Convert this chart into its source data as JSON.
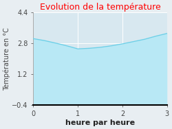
{
  "title": "Evolution de la température",
  "title_color": "#ff0000",
  "xlabel": "heure par heure",
  "ylabel": "Température en °C",
  "x": [
    0,
    0.25,
    0.5,
    0.75,
    1.0,
    1.25,
    1.5,
    1.75,
    2.0,
    2.25,
    2.5,
    2.75,
    3.0
  ],
  "y": [
    3.05,
    2.95,
    2.82,
    2.68,
    2.52,
    2.55,
    2.6,
    2.68,
    2.78,
    2.9,
    3.02,
    3.18,
    3.32
  ],
  "line_color": "#6dd0e8",
  "fill_color": "#b8e8f5",
  "background_color": "#d8e8f0",
  "plot_bg_color": "#d8e8f0",
  "outer_bg_color": "#e8eef2",
  "xlim": [
    0,
    3
  ],
  "ylim": [
    -0.4,
    4.4
  ],
  "xticks": [
    0,
    1,
    2,
    3
  ],
  "yticks": [
    -0.4,
    1.2,
    2.8,
    4.4
  ],
  "grid_color": "#ffffff",
  "title_fontsize": 9,
  "xlabel_fontsize": 8,
  "ylabel_fontsize": 7,
  "tick_fontsize": 7
}
